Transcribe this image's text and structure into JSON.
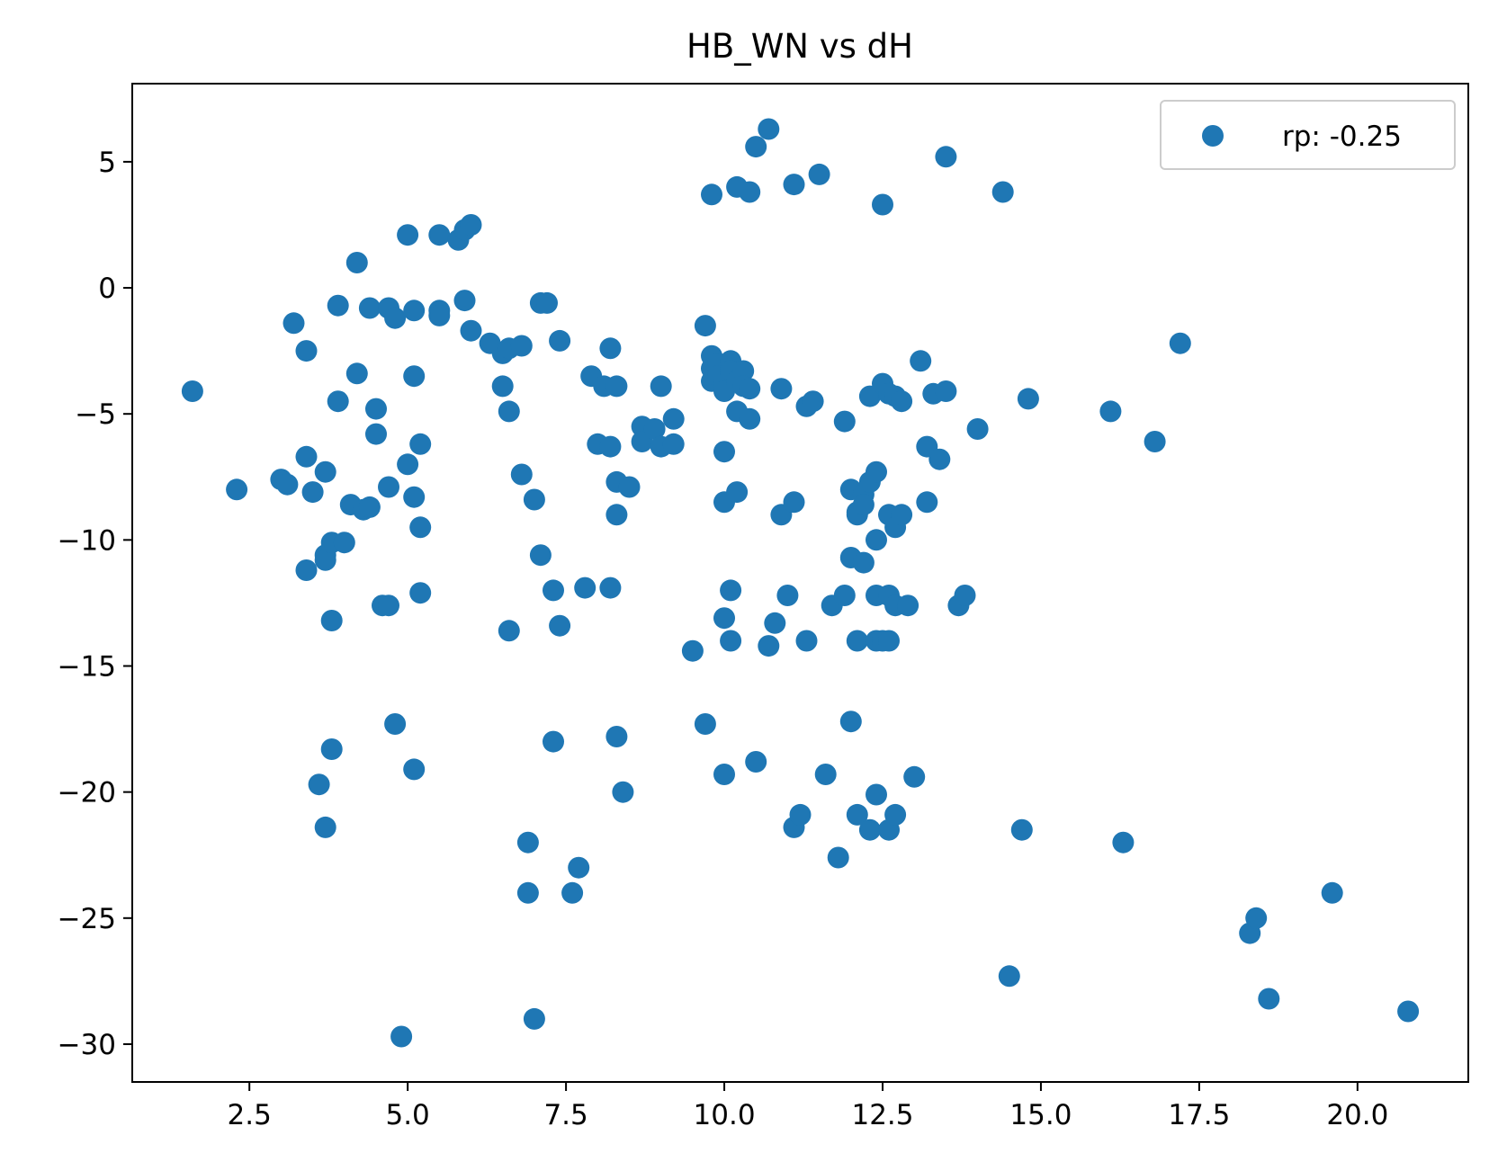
{
  "chart_data": {
    "type": "scatter",
    "title": "HB_WN vs dH",
    "xlabel": "",
    "ylabel": "",
    "xlim": [
      0.65,
      21.75
    ],
    "ylim": [
      -31.5,
      8.1
    ],
    "xticks": [
      2.5,
      5.0,
      7.5,
      10.0,
      12.5,
      15.0,
      17.5,
      20.0
    ],
    "xtick_labels": [
      "2.5",
      "5.0",
      "7.5",
      "10.0",
      "12.5",
      "15.0",
      "17.5",
      "20.0"
    ],
    "yticks": [
      5,
      0,
      -5,
      -10,
      -15,
      -20,
      -25,
      -30
    ],
    "ytick_labels": [
      "5",
      "0",
      "−5",
      "−10",
      "−15",
      "−20",
      "−25",
      "−30"
    ],
    "grid": false,
    "legend_position": "upper right",
    "series": [
      {
        "name": "rp: -0.25",
        "color": "#1f77b4",
        "points": [
          [
            1.6,
            -4.1
          ],
          [
            2.3,
            -8.0
          ],
          [
            3.0,
            -7.6
          ],
          [
            3.1,
            -7.8
          ],
          [
            3.2,
            -1.4
          ],
          [
            3.4,
            -2.5
          ],
          [
            3.4,
            -6.7
          ],
          [
            3.5,
            -8.1
          ],
          [
            3.4,
            -11.2
          ],
          [
            3.6,
            -19.7
          ],
          [
            3.7,
            -21.4
          ],
          [
            3.7,
            -7.3
          ],
          [
            3.7,
            -10.6
          ],
          [
            3.7,
            -10.8
          ],
          [
            3.8,
            -10.1
          ],
          [
            3.8,
            -13.2
          ],
          [
            3.8,
            -18.3
          ],
          [
            3.9,
            -0.7
          ],
          [
            3.9,
            -4.5
          ],
          [
            4.0,
            -10.1
          ],
          [
            4.1,
            -8.6
          ],
          [
            4.2,
            1.0
          ],
          [
            4.2,
            -3.4
          ],
          [
            4.3,
            -8.8
          ],
          [
            4.4,
            -8.7
          ],
          [
            4.4,
            -0.8
          ],
          [
            4.5,
            -4.8
          ],
          [
            4.5,
            -5.8
          ],
          [
            4.6,
            -12.6
          ],
          [
            4.7,
            -12.6
          ],
          [
            4.7,
            -0.8
          ],
          [
            4.7,
            -7.9
          ],
          [
            4.8,
            -1.2
          ],
          [
            4.8,
            -17.3
          ],
          [
            4.9,
            -29.7
          ],
          [
            5.0,
            2.1
          ],
          [
            5.0,
            -7.0
          ],
          [
            5.1,
            -0.9
          ],
          [
            5.1,
            -3.5
          ],
          [
            5.1,
            -8.3
          ],
          [
            5.1,
            -19.1
          ],
          [
            5.2,
            -6.2
          ],
          [
            5.2,
            -9.5
          ],
          [
            5.2,
            -12.1
          ],
          [
            5.5,
            2.1
          ],
          [
            5.5,
            -0.9
          ],
          [
            5.5,
            -1.1
          ],
          [
            5.8,
            1.9
          ],
          [
            5.9,
            2.3
          ],
          [
            6.0,
            2.5
          ],
          [
            5.9,
            -0.5
          ],
          [
            6.0,
            -1.7
          ],
          [
            6.3,
            -2.2
          ],
          [
            6.5,
            -2.6
          ],
          [
            6.6,
            -2.4
          ],
          [
            6.8,
            -2.3
          ],
          [
            6.5,
            -3.9
          ],
          [
            6.6,
            -4.9
          ],
          [
            6.6,
            -13.6
          ],
          [
            6.8,
            -7.4
          ],
          [
            6.9,
            -22.0
          ],
          [
            6.9,
            -24.0
          ],
          [
            7.0,
            -8.4
          ],
          [
            7.0,
            -29.0
          ],
          [
            7.1,
            -0.6
          ],
          [
            7.2,
            -0.6
          ],
          [
            7.1,
            -10.6
          ],
          [
            7.3,
            -12.0
          ],
          [
            7.3,
            -18.0
          ],
          [
            7.4,
            -2.1
          ],
          [
            7.4,
            -13.4
          ],
          [
            7.6,
            -24.0
          ],
          [
            7.7,
            -23.0
          ],
          [
            7.8,
            -11.9
          ],
          [
            7.9,
            -3.5
          ],
          [
            8.0,
            -6.2
          ],
          [
            8.1,
            -3.9
          ],
          [
            8.2,
            -2.4
          ],
          [
            8.2,
            -6.3
          ],
          [
            8.2,
            -11.9
          ],
          [
            8.3,
            -3.9
          ],
          [
            8.3,
            -7.7
          ],
          [
            8.3,
            -9.0
          ],
          [
            8.3,
            -17.8
          ],
          [
            8.4,
            -20.0
          ],
          [
            8.5,
            -7.9
          ],
          [
            8.7,
            -5.5
          ],
          [
            8.7,
            -6.1
          ],
          [
            8.9,
            -5.6
          ],
          [
            9.0,
            -3.9
          ],
          [
            9.0,
            -6.3
          ],
          [
            9.2,
            -5.2
          ],
          [
            9.2,
            -6.2
          ],
          [
            9.5,
            -14.4
          ],
          [
            9.7,
            -1.5
          ],
          [
            9.7,
            -17.3
          ],
          [
            9.8,
            3.7
          ],
          [
            9.8,
            -2.7
          ],
          [
            9.8,
            -3.2
          ],
          [
            9.8,
            -3.7
          ],
          [
            9.9,
            -3.0
          ],
          [
            9.9,
            -3.5
          ],
          [
            10.0,
            -3.8
          ],
          [
            10.0,
            -4.1
          ],
          [
            10.0,
            -6.5
          ],
          [
            10.0,
            -8.5
          ],
          [
            10.0,
            -13.1
          ],
          [
            10.0,
            -19.3
          ],
          [
            10.1,
            -2.9
          ],
          [
            10.1,
            -3.3
          ],
          [
            10.1,
            -12.0
          ],
          [
            10.1,
            -14.0
          ],
          [
            10.2,
            4.0
          ],
          [
            10.2,
            -3.7
          ],
          [
            10.2,
            -4.9
          ],
          [
            10.2,
            -8.1
          ],
          [
            10.3,
            -3.3
          ],
          [
            10.3,
            -3.9
          ],
          [
            10.4,
            3.8
          ],
          [
            10.4,
            -4.0
          ],
          [
            10.4,
            -5.2
          ],
          [
            10.5,
            5.6
          ],
          [
            10.5,
            -18.8
          ],
          [
            10.7,
            6.3
          ],
          [
            10.7,
            -14.2
          ],
          [
            10.8,
            -13.3
          ],
          [
            10.9,
            -4.0
          ],
          [
            10.9,
            -9.0
          ],
          [
            11.0,
            -12.2
          ],
          [
            11.1,
            4.1
          ],
          [
            11.1,
            -8.5
          ],
          [
            11.1,
            -21.4
          ],
          [
            11.2,
            -20.9
          ],
          [
            11.3,
            -4.7
          ],
          [
            11.3,
            -14.0
          ],
          [
            11.4,
            -4.5
          ],
          [
            11.5,
            4.5
          ],
          [
            11.6,
            -19.3
          ],
          [
            11.7,
            -12.6
          ],
          [
            11.8,
            -22.6
          ],
          [
            11.9,
            -5.3
          ],
          [
            11.9,
            -12.2
          ],
          [
            12.0,
            -8.0
          ],
          [
            12.0,
            -10.7
          ],
          [
            12.0,
            -17.2
          ],
          [
            12.1,
            -8.9
          ],
          [
            12.1,
            -9.0
          ],
          [
            12.1,
            -14.0
          ],
          [
            12.1,
            -20.9
          ],
          [
            12.2,
            -8.2
          ],
          [
            12.2,
            -8.6
          ],
          [
            12.2,
            -10.9
          ],
          [
            12.3,
            -4.3
          ],
          [
            12.3,
            -7.7
          ],
          [
            12.3,
            -21.5
          ],
          [
            12.4,
            -7.3
          ],
          [
            12.4,
            -10.0
          ],
          [
            12.4,
            -12.2
          ],
          [
            12.4,
            -14.0
          ],
          [
            12.4,
            -20.1
          ],
          [
            12.5,
            3.3
          ],
          [
            12.5,
            -3.8
          ],
          [
            12.5,
            -14.0
          ],
          [
            12.6,
            -4.2
          ],
          [
            12.6,
            -9.0
          ],
          [
            12.6,
            -12.2
          ],
          [
            12.6,
            -14.0
          ],
          [
            12.6,
            -21.5
          ],
          [
            12.7,
            -4.3
          ],
          [
            12.7,
            -9.5
          ],
          [
            12.7,
            -12.6
          ],
          [
            12.7,
            -20.9
          ],
          [
            12.8,
            -4.5
          ],
          [
            12.8,
            -9.0
          ],
          [
            12.9,
            -12.6
          ],
          [
            13.0,
            -19.4
          ],
          [
            13.1,
            -2.9
          ],
          [
            13.2,
            -6.3
          ],
          [
            13.2,
            -8.5
          ],
          [
            13.3,
            -4.2
          ],
          [
            13.4,
            -6.8
          ],
          [
            13.5,
            5.2
          ],
          [
            13.5,
            -4.1
          ],
          [
            13.7,
            -12.6
          ],
          [
            13.8,
            -12.2
          ],
          [
            14.0,
            -5.6
          ],
          [
            14.4,
            3.8
          ],
          [
            14.5,
            -27.3
          ],
          [
            14.7,
            -21.5
          ],
          [
            14.8,
            -4.4
          ],
          [
            16.1,
            -4.9
          ],
          [
            16.3,
            -22.0
          ],
          [
            16.8,
            -6.1
          ],
          [
            17.2,
            -2.2
          ],
          [
            18.3,
            -25.6
          ],
          [
            18.4,
            -25.0
          ],
          [
            18.6,
            -28.2
          ],
          [
            19.6,
            -24.0
          ],
          [
            20.8,
            -28.7
          ]
        ]
      }
    ]
  },
  "legend": {
    "label": "rp: -0.25"
  }
}
